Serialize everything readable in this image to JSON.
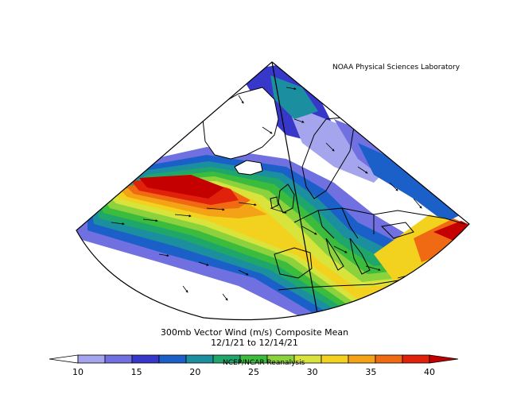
{
  "header": {
    "organization": "NOAA Physical Sciences Laboratory"
  },
  "map": {
    "title": "300mb Vector Wind (m/s) Composite Mean",
    "date_range": "12/1/21  to 12/14/21",
    "credit": "NCEP/NCAR Reanalysis",
    "projection": "polar sector (conic), North Atlantic / Europe",
    "features": [
      "Greenland",
      "Iceland",
      "Scandinavia",
      "British Isles",
      "Iberia",
      "North Africa",
      "Eastern Europe"
    ]
  },
  "colorbar": {
    "unit": "m/s",
    "tick_labels": [
      "10",
      "15",
      "20",
      "25",
      "30",
      "35",
      "40"
    ],
    "colors": [
      "#ffffff",
      "#a5a5ee",
      "#7070e0",
      "#3737c9",
      "#1b60c8",
      "#1b8fa0",
      "#1fa66b",
      "#3cbc3c",
      "#8cd23c",
      "#d8e43c",
      "#f2d21e",
      "#f5a316",
      "#ef6a12",
      "#e0220a",
      "#c20000"
    ]
  },
  "colors": {
    "ocean_land_low": "#ffffff",
    "jet_core": "#c40000",
    "coast": "#000000"
  }
}
